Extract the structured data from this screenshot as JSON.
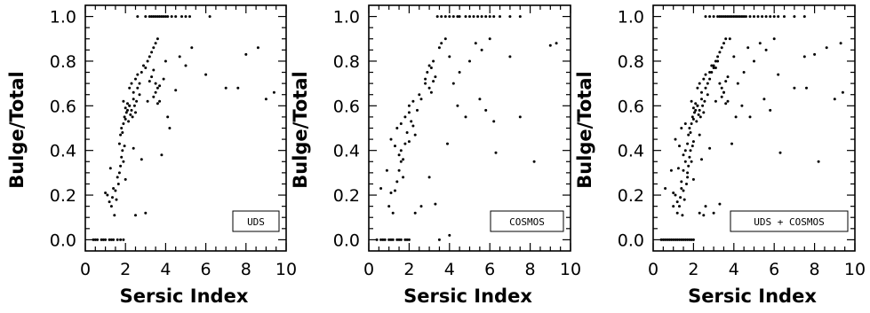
{
  "chart_data": [
    {
      "type": "scatter",
      "legend": "UDS",
      "xlabel": "Sersic Index",
      "ylabel": "Bulge/Total",
      "xlim": [
        0,
        10
      ],
      "ylim": [
        -0.05,
        1.05
      ],
      "xticks": [
        "0",
        "2",
        "4",
        "6",
        "8",
        "10"
      ],
      "yticks": [
        "0.0",
        "0.2",
        "0.4",
        "0.6",
        "0.8",
        "1.0"
      ],
      "legend_position": "bottom-right",
      "grid": false,
      "x": [
        0.4,
        0.6,
        0.8,
        1.0,
        1.2,
        1.4,
        1.6,
        1.75,
        1.9,
        0.5,
        0.9,
        1.3,
        1.0,
        1.1,
        1.2,
        1.3,
        1.35,
        1.4,
        1.5,
        1.45,
        1.55,
        1.25,
        1.6,
        1.65,
        1.7,
        1.75,
        1.8,
        1.9,
        1.85,
        1.95,
        1.7,
        1.75,
        1.8,
        1.85,
        1.9,
        1.95,
        2.0,
        2.05,
        2.1,
        2.15,
        2.2,
        2.25,
        1.9,
        2.0,
        2.1,
        2.2,
        2.3,
        2.4,
        2.5,
        2.35,
        2.45,
        2.55,
        2.6,
        2.7,
        2.2,
        2.3,
        2.4,
        2.5,
        2.6,
        2.7,
        2.8,
        2.9,
        3.0,
        3.1,
        3.2,
        3.3,
        3.4,
        3.5,
        3.6,
        3.2,
        3.3,
        3.4,
        3.5,
        3.6,
        3.7,
        3.1,
        3.4,
        3.5,
        3.6,
        2.0,
        2.5,
        3.0,
        3.8,
        4.2,
        4.5,
        5.0,
        4.0,
        4.7,
        5.3,
        6.0,
        3.9,
        4.1,
        3.7,
        2.4,
        2.8,
        7.0,
        7.6,
        8.0,
        8.6,
        9.0,
        9.4,
        2.6,
        3.0,
        3.2,
        3.3,
        3.4,
        3.5,
        3.6,
        3.7,
        3.8,
        3.9,
        4.0,
        4.1,
        4.3,
        4.5,
        4.8,
        5.0,
        5.2,
        6.2
      ],
      "y": [
        0,
        0,
        0,
        0,
        0,
        0,
        0,
        0,
        0,
        0,
        0,
        0,
        0.21,
        0.2,
        0.17,
        0.15,
        0.19,
        0.23,
        0.22,
        0.11,
        0.18,
        0.32,
        0.28,
        0.25,
        0.3,
        0.33,
        0.37,
        0.35,
        0.4,
        0.42,
        0.43,
        0.47,
        0.5,
        0.48,
        0.52,
        0.55,
        0.54,
        0.57,
        0.58,
        0.53,
        0.6,
        0.56,
        0.62,
        0.59,
        0.61,
        0.6,
        0.58,
        0.63,
        0.57,
        0.55,
        0.6,
        0.62,
        0.68,
        0.65,
        0.68,
        0.7,
        0.66,
        0.72,
        0.74,
        0.7,
        0.75,
        0.78,
        0.77,
        0.8,
        0.82,
        0.84,
        0.86,
        0.88,
        0.9,
        0.71,
        0.73,
        0.76,
        0.7,
        0.68,
        0.69,
        0.62,
        0.64,
        0.66,
        0.61,
        0.27,
        0.11,
        0.12,
        0.38,
        0.5,
        0.67,
        0.78,
        0.8,
        0.82,
        0.86,
        0.74,
        0.72,
        0.55,
        0.62,
        0.41,
        0.36,
        0.68,
        0.68,
        0.83,
        0.86,
        0.63,
        0.66,
        1,
        1,
        1,
        1,
        1,
        1,
        1,
        1,
        1,
        1,
        1,
        1,
        1,
        1,
        1,
        1,
        1,
        1
      ]
    },
    {
      "type": "scatter",
      "legend": "COSMOS",
      "xlabel": "Sersic Index",
      "ylabel": "Bulge/Total",
      "xlim": [
        0,
        10
      ],
      "ylim": [
        -0.05,
        1.05
      ],
      "xticks": [
        "0",
        "2",
        "4",
        "6",
        "8",
        "10"
      ],
      "yticks": [
        "0.0",
        "0.2",
        "0.4",
        "0.6",
        "0.8",
        "1.0"
      ],
      "legend_position": "bottom-right",
      "grid": false,
      "x": [
        0.4,
        0.6,
        0.8,
        1.0,
        1.2,
        1.4,
        1.6,
        1.8,
        2.0,
        0.7,
        1.1,
        1.5,
        1.9,
        0.6,
        0.9,
        1.1,
        1.3,
        1.0,
        1.2,
        1.4,
        1.5,
        1.6,
        1.7,
        1.1,
        1.3,
        1.5,
        1.6,
        1.7,
        1.8,
        1.9,
        2.0,
        1.4,
        1.6,
        1.8,
        2.0,
        2.1,
        2.2,
        2.3,
        2.0,
        2.2,
        2.4,
        2.5,
        2.6,
        2.8,
        2.9,
        3.0,
        3.1,
        3.2,
        2.8,
        3.0,
        3.1,
        3.2,
        3.3,
        3.0,
        3.5,
        3.6,
        3.8,
        4.0,
        4.2,
        4.5,
        5.0,
        5.3,
        5.6,
        6.0,
        4.8,
        5.5,
        6.2,
        7.0,
        7.5,
        8.2,
        9.0,
        9.3,
        4.4,
        5.8,
        6.3,
        3.9,
        3.3,
        2.6,
        2.3,
        3.4,
        3.6,
        3.8,
        4.0,
        4.2,
        4.4,
        4.5,
        4.8,
        5.0,
        5.2,
        5.4,
        5.6,
        5.8,
        6.0,
        6.2,
        6.5,
        7.0,
        7.5,
        3.5,
        4.0
      ],
      "y": [
        0,
        0,
        0,
        0,
        0,
        0,
        0,
        0,
        0,
        0,
        0,
        0,
        0,
        0.23,
        0.31,
        0.21,
        0.22,
        0.15,
        0.12,
        0.26,
        0.31,
        0.35,
        0.28,
        0.45,
        0.42,
        0.38,
        0.4,
        0.36,
        0.43,
        0.48,
        0.44,
        0.5,
        0.52,
        0.55,
        0.57,
        0.53,
        0.51,
        0.47,
        0.6,
        0.62,
        0.58,
        0.65,
        0.63,
        0.72,
        0.75,
        0.78,
        0.77,
        0.8,
        0.7,
        0.68,
        0.66,
        0.71,
        0.73,
        0.28,
        0.86,
        0.88,
        0.9,
        0.82,
        0.7,
        0.75,
        0.8,
        0.88,
        0.85,
        0.9,
        0.55,
        0.63,
        0.53,
        0.82,
        0.55,
        0.35,
        0.87,
        0.88,
        0.6,
        0.58,
        0.39,
        0.43,
        0.16,
        0.15,
        0.12,
        1,
        1,
        1,
        1,
        1,
        1,
        1,
        1,
        1,
        1,
        1,
        1,
        1,
        1,
        1,
        1,
        1,
        1,
        0,
        0.02
      ]
    },
    {
      "type": "scatter",
      "legend": "UDS + COSMOS",
      "xlabel": "Sersic Index",
      "ylabel": "Bulge/Total",
      "xlim": [
        0,
        10
      ],
      "ylim": [
        -0.05,
        1.05
      ],
      "xticks": [
        "0",
        "2",
        "4",
        "6",
        "8",
        "10"
      ],
      "yticks": [
        "0.0",
        "0.2",
        "0.4",
        "0.6",
        "0.8",
        "1.0"
      ],
      "legend_position": "bottom-right",
      "grid": false,
      "x": [
        0.4,
        0.5,
        0.6,
        0.7,
        0.8,
        0.9,
        1.0,
        1.1,
        1.2,
        1.3,
        1.4,
        1.5,
        1.6,
        1.7,
        1.8,
        1.9,
        2.0,
        0.6,
        0.9,
        1.0,
        1.1,
        1.2,
        1.3,
        1.35,
        1.4,
        1.5,
        1.45,
        1.55,
        1.25,
        1.0,
        1.2,
        1.4,
        1.5,
        1.6,
        1.7,
        1.1,
        1.3,
        1.5,
        1.6,
        1.65,
        1.7,
        1.75,
        1.8,
        1.9,
        1.85,
        1.95,
        2.0,
        1.4,
        1.6,
        1.7,
        1.75,
        1.8,
        1.85,
        1.9,
        1.95,
        2.0,
        2.05,
        2.1,
        2.15,
        2.2,
        2.25,
        2.3,
        1.9,
        2.0,
        2.1,
        2.2,
        2.3,
        2.4,
        2.5,
        2.35,
        2.45,
        2.55,
        2.6,
        2.7,
        2.2,
        2.3,
        2.4,
        2.5,
        2.6,
        2.7,
        2.8,
        2.9,
        3.0,
        3.1,
        3.2,
        3.3,
        3.4,
        3.5,
        3.6,
        2.8,
        2.9,
        3.0,
        3.1,
        3.2,
        3.3,
        3.4,
        3.5,
        3.6,
        3.7,
        3.1,
        3.4,
        3.5,
        3.6,
        3.8,
        4.0,
        4.2,
        4.5,
        4.7,
        5.0,
        5.3,
        5.5,
        5.6,
        6.0,
        6.2,
        4.4,
        4.8,
        5.8,
        6.3,
        7.0,
        7.5,
        7.6,
        8.0,
        8.2,
        8.6,
        9.0,
        9.3,
        9.4,
        3.9,
        4.1,
        3.7,
        3.3,
        2.8,
        2.6,
        2.4,
        2.3,
        2.0,
        2.5,
        3.0,
        2.6,
        2.8,
        3.0,
        3.2,
        3.3,
        3.4,
        3.5,
        3.6,
        3.7,
        3.8,
        3.9,
        4.0,
        4.1,
        4.2,
        4.3,
        4.4,
        4.5,
        4.6,
        4.8,
        5.0,
        5.2,
        5.4,
        5.6,
        5.8,
        6.0,
        6.2,
        6.5,
        7.0,
        7.5
      ],
      "y": [
        0,
        0,
        0,
        0,
        0,
        0,
        0,
        0,
        0,
        0,
        0,
        0,
        0,
        0,
        0,
        0,
        0,
        0.23,
        0.31,
        0.21,
        0.2,
        0.17,
        0.15,
        0.19,
        0.23,
        0.22,
        0.11,
        0.18,
        0.32,
        0.15,
        0.12,
        0.26,
        0.31,
        0.35,
        0.28,
        0.45,
        0.42,
        0.38,
        0.4,
        0.25,
        0.3,
        0.33,
        0.37,
        0.35,
        0.4,
        0.42,
        0.44,
        0.5,
        0.52,
        0.43,
        0.47,
        0.5,
        0.48,
        0.52,
        0.55,
        0.54,
        0.57,
        0.58,
        0.53,
        0.6,
        0.56,
        0.47,
        0.62,
        0.59,
        0.61,
        0.6,
        0.58,
        0.63,
        0.57,
        0.55,
        0.6,
        0.62,
        0.68,
        0.65,
        0.68,
        0.7,
        0.66,
        0.72,
        0.74,
        0.7,
        0.75,
        0.78,
        0.77,
        0.8,
        0.82,
        0.84,
        0.86,
        0.88,
        0.9,
        0.72,
        0.75,
        0.78,
        0.77,
        0.8,
        0.7,
        0.68,
        0.66,
        0.71,
        0.73,
        0.62,
        0.64,
        0.66,
        0.61,
        0.9,
        0.82,
        0.7,
        0.75,
        0.86,
        0.8,
        0.88,
        0.63,
        0.85,
        0.9,
        0.74,
        0.6,
        0.55,
        0.58,
        0.39,
        0.68,
        0.82,
        0.68,
        0.83,
        0.35,
        0.86,
        0.63,
        0.88,
        0.66,
        0.43,
        0.55,
        0.62,
        0.16,
        0.41,
        0.15,
        0.36,
        0.12,
        0.27,
        0.11,
        0.12,
        1,
        1,
        1,
        1,
        1,
        1,
        1,
        1,
        1,
        1,
        1,
        1,
        1,
        1,
        1,
        1,
        1,
        1,
        1,
        1,
        1,
        1,
        1,
        1,
        1,
        1,
        1,
        1,
        1
      ]
    }
  ]
}
